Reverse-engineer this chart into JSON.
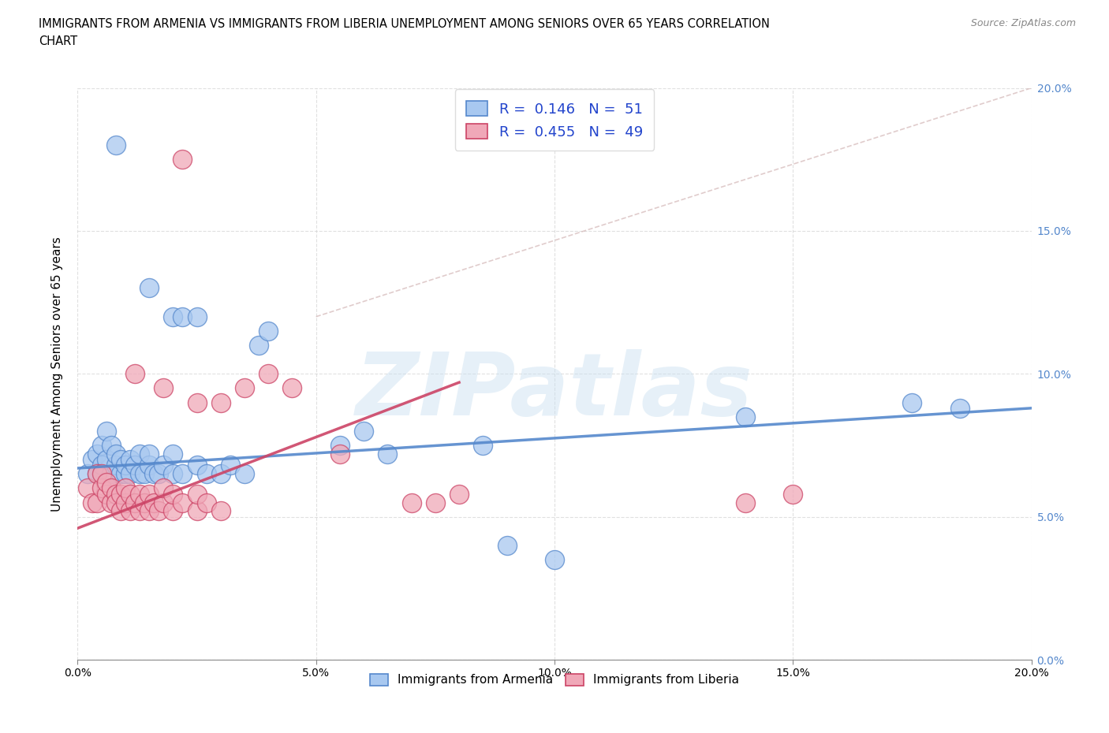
{
  "title_line1": "IMMIGRANTS FROM ARMENIA VS IMMIGRANTS FROM LIBERIA UNEMPLOYMENT AMONG SENIORS OVER 65 YEARS CORRELATION",
  "title_line2": "CHART",
  "source": "Source: ZipAtlas.com",
  "ylabel": "Unemployment Among Seniors over 65 years",
  "xlim": [
    0.0,
    0.2
  ],
  "ylim": [
    0.0,
    0.2
  ],
  "xticks": [
    0.0,
    0.05,
    0.1,
    0.15,
    0.2
  ],
  "yticks": [
    0.0,
    0.05,
    0.1,
    0.15,
    0.2
  ],
  "armenia_color": "#a8c8f0",
  "liberia_color": "#f0a8b8",
  "armenia_edge": "#5588cc",
  "liberia_edge": "#cc4466",
  "R_armenia": 0.146,
  "N_armenia": 51,
  "R_liberia": 0.455,
  "N_liberia": 49,
  "watermark": "ZIPatlas",
  "legend_entries": [
    "Immigrants from Armenia",
    "Immigrants from Liberia"
  ],
  "armenia_scatter": [
    [
      0.002,
      0.065
    ],
    [
      0.003,
      0.07
    ],
    [
      0.004,
      0.065
    ],
    [
      0.004,
      0.072
    ],
    [
      0.005,
      0.068
    ],
    [
      0.005,
      0.075
    ],
    [
      0.006,
      0.07
    ],
    [
      0.006,
      0.08
    ],
    [
      0.007,
      0.065
    ],
    [
      0.007,
      0.075
    ],
    [
      0.008,
      0.068
    ],
    [
      0.008,
      0.072
    ],
    [
      0.009,
      0.065
    ],
    [
      0.009,
      0.07
    ],
    [
      0.01,
      0.065
    ],
    [
      0.01,
      0.068
    ],
    [
      0.011,
      0.065
    ],
    [
      0.011,
      0.07
    ],
    [
      0.012,
      0.068
    ],
    [
      0.013,
      0.065
    ],
    [
      0.013,
      0.072
    ],
    [
      0.014,
      0.065
    ],
    [
      0.015,
      0.068
    ],
    [
      0.015,
      0.072
    ],
    [
      0.016,
      0.065
    ],
    [
      0.017,
      0.065
    ],
    [
      0.018,
      0.068
    ],
    [
      0.02,
      0.065
    ],
    [
      0.02,
      0.072
    ],
    [
      0.022,
      0.065
    ],
    [
      0.025,
      0.068
    ],
    [
      0.027,
      0.065
    ],
    [
      0.03,
      0.065
    ],
    [
      0.032,
      0.068
    ],
    [
      0.035,
      0.065
    ],
    [
      0.008,
      0.18
    ],
    [
      0.015,
      0.13
    ],
    [
      0.02,
      0.12
    ],
    [
      0.022,
      0.12
    ],
    [
      0.025,
      0.12
    ],
    [
      0.038,
      0.11
    ],
    [
      0.04,
      0.115
    ],
    [
      0.055,
      0.075
    ],
    [
      0.06,
      0.08
    ],
    [
      0.065,
      0.072
    ],
    [
      0.085,
      0.075
    ],
    [
      0.09,
      0.04
    ],
    [
      0.1,
      0.035
    ],
    [
      0.14,
      0.085
    ],
    [
      0.175,
      0.09
    ],
    [
      0.185,
      0.088
    ]
  ],
  "liberia_scatter": [
    [
      0.002,
      0.06
    ],
    [
      0.003,
      0.055
    ],
    [
      0.004,
      0.065
    ],
    [
      0.004,
      0.055
    ],
    [
      0.005,
      0.06
    ],
    [
      0.005,
      0.065
    ],
    [
      0.006,
      0.058
    ],
    [
      0.006,
      0.062
    ],
    [
      0.007,
      0.055
    ],
    [
      0.007,
      0.06
    ],
    [
      0.008,
      0.058
    ],
    [
      0.008,
      0.055
    ],
    [
      0.009,
      0.052
    ],
    [
      0.009,
      0.058
    ],
    [
      0.01,
      0.055
    ],
    [
      0.01,
      0.06
    ],
    [
      0.011,
      0.052
    ],
    [
      0.011,
      0.058
    ],
    [
      0.012,
      0.055
    ],
    [
      0.013,
      0.052
    ],
    [
      0.013,
      0.058
    ],
    [
      0.014,
      0.055
    ],
    [
      0.015,
      0.052
    ],
    [
      0.015,
      0.058
    ],
    [
      0.016,
      0.055
    ],
    [
      0.017,
      0.052
    ],
    [
      0.018,
      0.055
    ],
    [
      0.018,
      0.06
    ],
    [
      0.02,
      0.052
    ],
    [
      0.02,
      0.058
    ],
    [
      0.022,
      0.055
    ],
    [
      0.025,
      0.052
    ],
    [
      0.025,
      0.058
    ],
    [
      0.027,
      0.055
    ],
    [
      0.03,
      0.052
    ],
    [
      0.012,
      0.1
    ],
    [
      0.018,
      0.095
    ],
    [
      0.025,
      0.09
    ],
    [
      0.03,
      0.09
    ],
    [
      0.035,
      0.095
    ],
    [
      0.04,
      0.1
    ],
    [
      0.045,
      0.095
    ],
    [
      0.022,
      0.175
    ],
    [
      0.055,
      0.072
    ],
    [
      0.07,
      0.055
    ],
    [
      0.075,
      0.055
    ],
    [
      0.08,
      0.058
    ],
    [
      0.14,
      0.055
    ],
    [
      0.15,
      0.058
    ]
  ]
}
